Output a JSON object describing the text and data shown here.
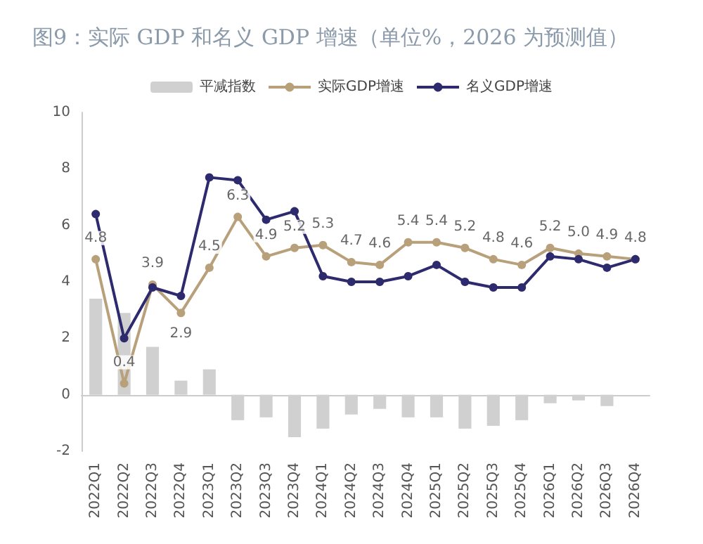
{
  "chart_data": {
    "type": "bar",
    "title": "图9：实际 GDP 和名义 GDP 增速（单位%，2026 为预测值）",
    "categories": [
      "2022Q1",
      "2022Q2",
      "2022Q3",
      "2022Q4",
      "2023Q1",
      "2023Q2",
      "2023Q3",
      "2023Q4",
      "2024Q1",
      "2024Q2",
      "2024Q3",
      "2024Q4",
      "2025Q1",
      "2025Q2",
      "2025Q3",
      "2025Q4",
      "2026Q1",
      "2026Q2",
      "2026Q3",
      "2026Q4"
    ],
    "series": [
      {
        "name": "平减指数",
        "color": "#d0d0d0",
        "values": [
          3.4,
          2.9,
          1.7,
          0.5,
          0.9,
          -0.9,
          -0.8,
          -1.5,
          -1.2,
          -0.7,
          -0.5,
          -0.8,
          -0.8,
          -1.2,
          -1.1,
          -0.9,
          -0.3,
          -0.2,
          -0.4,
          0
        ]
      },
      {
        "name": "实际GDP增速",
        "type": "line",
        "color": "#b8a07a",
        "values": [
          4.8,
          0.4,
          3.9,
          2.9,
          4.5,
          6.3,
          4.9,
          5.2,
          5.3,
          4.7,
          4.6,
          5.4,
          5.4,
          5.2,
          4.8,
          4.6,
          5.2,
          5.0,
          4.9,
          4.8
        ],
        "value_labels": [
          "4.8",
          "0.4",
          "3.9",
          "2.9",
          "4.5",
          "6.3",
          "4.9",
          "5.2",
          "5.3",
          "4.7",
          "4.6",
          "5.4",
          "5.4",
          "5.2",
          "4.8",
          "4.6",
          "5.2",
          "5.0",
          "4.9",
          "4.8"
        ]
      },
      {
        "name": "名义GDP增速",
        "type": "line",
        "color": "#2e2a6e",
        "values": [
          6.4,
          2.0,
          3.8,
          3.5,
          7.7,
          7.6,
          6.2,
          6.5,
          4.2,
          4.0,
          4.0,
          4.2,
          4.6,
          4.0,
          3.8,
          3.8,
          4.9,
          4.8,
          4.5,
          4.8
        ]
      }
    ],
    "ylim": [
      -2,
      10
    ],
    "yticks": [
      -2,
      0,
      2,
      4,
      6,
      8,
      10
    ],
    "legend": "top",
    "marker": "circle"
  }
}
